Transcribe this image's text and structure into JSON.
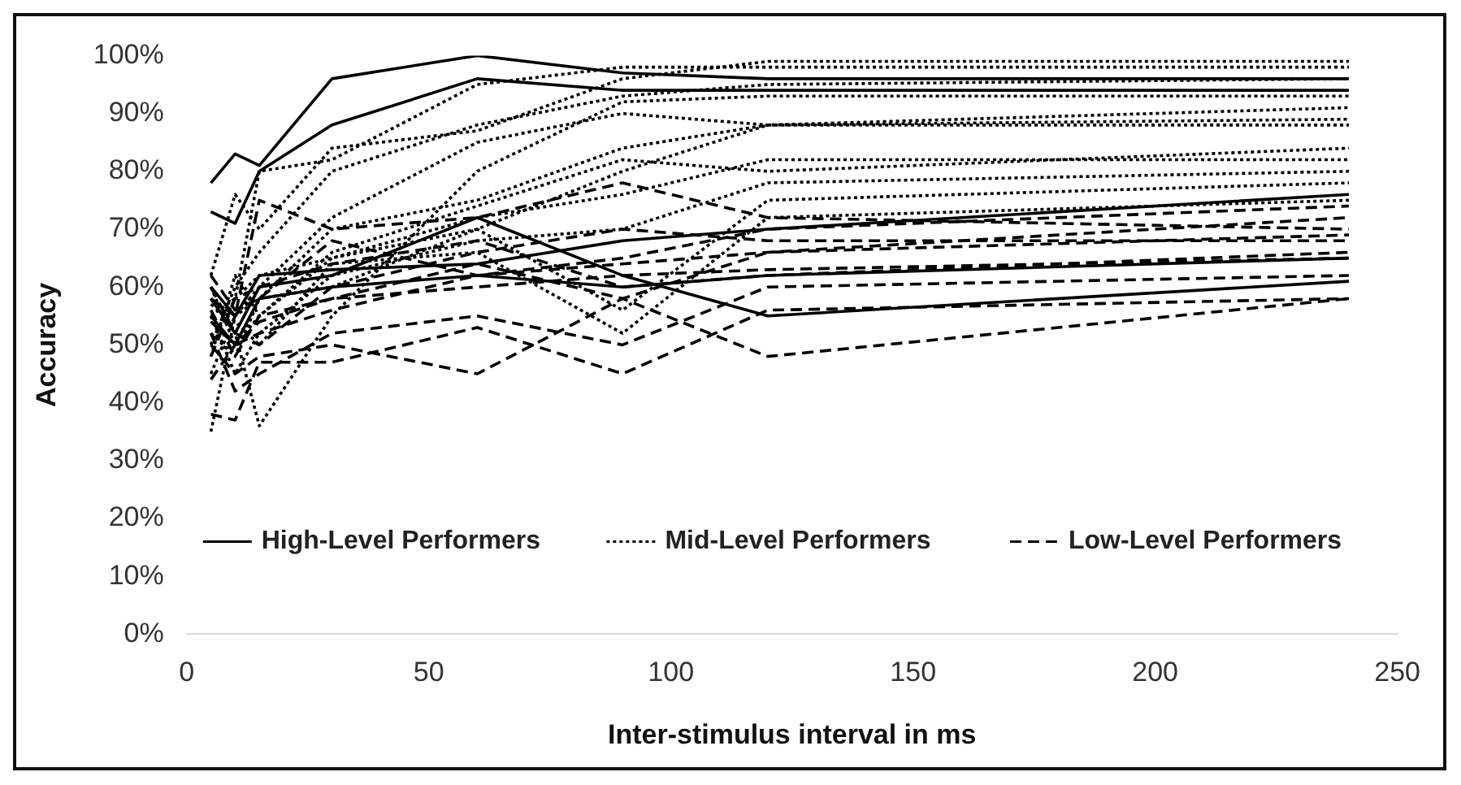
{
  "chart_data": {
    "type": "line",
    "xlabel": "Inter-stimulus interval in ms",
    "ylabel": "Accuracy",
    "x": [
      5,
      10,
      15,
      30,
      60,
      90,
      120,
      240
    ],
    "xlim": [
      0,
      250
    ],
    "xticks": [
      0,
      50,
      100,
      150,
      200,
      250
    ],
    "ylim": [
      0,
      100
    ],
    "yticks": [
      {
        "value": 0,
        "label": "0%"
      },
      {
        "value": 10,
        "label": "10%"
      },
      {
        "value": 20,
        "label": "20%"
      },
      {
        "value": 30,
        "label": "30%"
      },
      {
        "value": 40,
        "label": "40%"
      },
      {
        "value": 50,
        "label": "50%"
      },
      {
        "value": 60,
        "label": "60%"
      },
      {
        "value": 70,
        "label": "70%"
      },
      {
        "value": 80,
        "label": "80%"
      },
      {
        "value": 90,
        "label": "90%"
      },
      {
        "value": 100,
        "label": "100%"
      }
    ],
    "grid": false,
    "legend": "bottom",
    "marker": "none",
    "series": [
      {
        "name": "High-Level Performers",
        "color": "#000000",
        "line_style": "solid",
        "values": [
          78,
          83,
          81,
          96,
          100,
          97,
          96,
          96
        ]
      },
      {
        "color": "#000000",
        "line_style": "solid",
        "values": [
          73,
          71,
          80,
          88,
          96,
          94,
          94,
          94
        ]
      },
      {
        "color": "#000000",
        "line_style": "solid",
        "values": [
          60,
          55,
          62,
          63,
          64,
          68,
          70,
          76
        ]
      },
      {
        "color": "#000000",
        "line_style": "solid",
        "values": [
          58,
          52,
          60,
          62,
          72,
          62,
          55,
          61
        ]
      },
      {
        "color": "#000000",
        "line_style": "solid",
        "values": [
          55,
          50,
          58,
          60,
          62,
          60,
          62,
          65
        ]
      },
      {
        "name": "Mid-Level Performers",
        "color": "#000000",
        "line_style": "dotted",
        "values": [
          62,
          76,
          70,
          84,
          87,
          96,
          99,
          99
        ]
      },
      {
        "color": "#000000",
        "line_style": "dotted",
        "values": [
          55,
          58,
          80,
          82,
          95,
          98,
          98,
          98
        ]
      },
      {
        "color": "#000000",
        "line_style": "dotted",
        "values": [
          50,
          60,
          66,
          80,
          88,
          93,
          95,
          96
        ]
      },
      {
        "color": "#000000",
        "line_style": "dotted",
        "values": [
          58,
          52,
          36,
          55,
          80,
          92,
          93,
          93
        ]
      },
      {
        "color": "#000000",
        "line_style": "dotted",
        "values": [
          45,
          55,
          60,
          72,
          85,
          90,
          88,
          91
        ]
      },
      {
        "color": "#000000",
        "line_style": "dotted",
        "values": [
          52,
          48,
          58,
          70,
          75,
          84,
          88,
          89
        ]
      },
      {
        "color": "#000000",
        "line_style": "dotted",
        "values": [
          60,
          50,
          55,
          66,
          74,
          82,
          80,
          84
        ]
      },
      {
        "color": "#000000",
        "line_style": "dotted",
        "values": [
          48,
          62,
          55,
          65,
          72,
          76,
          82,
          82
        ]
      },
      {
        "color": "#000000",
        "line_style": "dotted",
        "values": [
          55,
          45,
          52,
          62,
          68,
          70,
          78,
          80
        ]
      },
      {
        "color": "#000000",
        "line_style": "dotted",
        "values": [
          35,
          55,
          58,
          60,
          70,
          56,
          75,
          78
        ]
      },
      {
        "color": "#000000",
        "line_style": "dotted",
        "values": [
          57,
          54,
          50,
          64,
          66,
          52,
          72,
          75
        ]
      },
      {
        "color": "#000000",
        "line_style": "dotted",
        "values": [
          50,
          58,
          62,
          65,
          70,
          80,
          88,
          88
        ]
      },
      {
        "name": "Low-Level Performers",
        "color": "#000000",
        "line_style": "dashed",
        "values": [
          38,
          37,
          47,
          47,
          53,
          45,
          56,
          58
        ]
      },
      {
        "color": "#000000",
        "line_style": "dashed",
        "values": [
          50,
          45,
          48,
          50,
          45,
          58,
          48,
          58
        ]
      },
      {
        "color": "#000000",
        "line_style": "dashed",
        "values": [
          52,
          42,
          45,
          52,
          55,
          50,
          60,
          62
        ]
      },
      {
        "color": "#000000",
        "line_style": "dashed",
        "values": [
          56,
          48,
          55,
          58,
          60,
          62,
          63,
          65
        ]
      },
      {
        "color": "#000000",
        "line_style": "dashed",
        "values": [
          60,
          52,
          50,
          60,
          66,
          70,
          68,
          68
        ]
      },
      {
        "color": "#000000",
        "line_style": "dashed",
        "values": [
          58,
          55,
          75,
          70,
          72,
          78,
          72,
          70
        ]
      },
      {
        "color": "#000000",
        "line_style": "dashed",
        "values": [
          54,
          50,
          52,
          56,
          62,
          64,
          66,
          72
        ]
      },
      {
        "color": "#000000",
        "line_style": "dashed",
        "values": [
          48,
          58,
          60,
          64,
          68,
          60,
          62,
          66
        ]
      },
      {
        "color": "#000000",
        "line_style": "dashed",
        "values": [
          62,
          56,
          58,
          68,
          62,
          65,
          70,
          74
        ]
      },
      {
        "color": "#000000",
        "line_style": "dashed",
        "values": [
          44,
          50,
          54,
          58,
          64,
          58,
          66,
          69
        ]
      }
    ]
  }
}
